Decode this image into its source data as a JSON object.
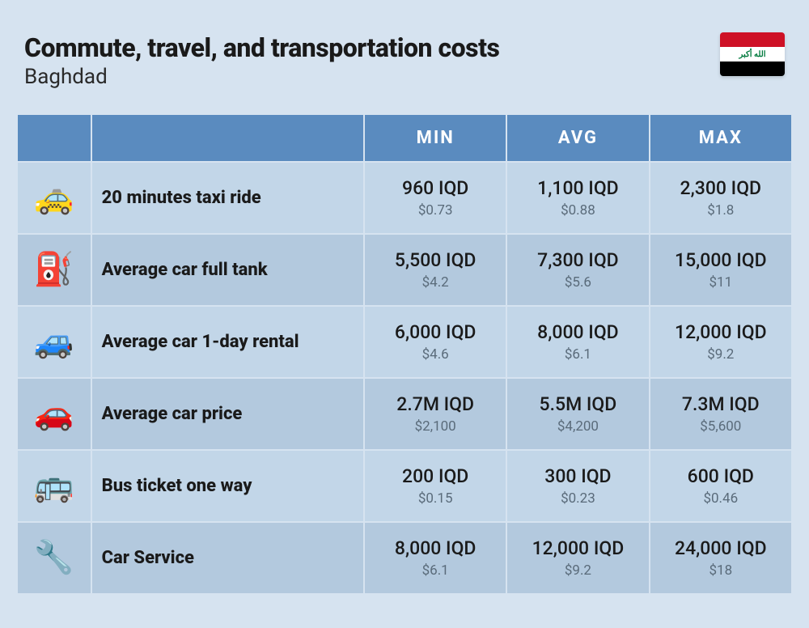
{
  "header": {
    "title": "Commute, travel, and transportation costs",
    "subtitle": "Baghdad",
    "flag_text": "الله أكبر",
    "flag_colors": {
      "top": "#ce1126",
      "middle": "#ffffff",
      "bottom": "#000000",
      "script": "#007a3d"
    }
  },
  "columns": {
    "min": "MIN",
    "avg": "AVG",
    "max": "MAX"
  },
  "rows": [
    {
      "icon": "🚕",
      "label": "20 minutes taxi ride",
      "min": {
        "primary": "960 IQD",
        "secondary": "$0.73"
      },
      "avg": {
        "primary": "1,100 IQD",
        "secondary": "$0.88"
      },
      "max": {
        "primary": "2,300 IQD",
        "secondary": "$1.8"
      }
    },
    {
      "icon": "⛽",
      "label": "Average car full tank",
      "min": {
        "primary": "5,500 IQD",
        "secondary": "$4.2"
      },
      "avg": {
        "primary": "7,300 IQD",
        "secondary": "$5.6"
      },
      "max": {
        "primary": "15,000 IQD",
        "secondary": "$11"
      }
    },
    {
      "icon": "🚙",
      "label": "Average car 1-day rental",
      "min": {
        "primary": "6,000 IQD",
        "secondary": "$4.6"
      },
      "avg": {
        "primary": "8,000 IQD",
        "secondary": "$6.1"
      },
      "max": {
        "primary": "12,000 IQD",
        "secondary": "$9.2"
      }
    },
    {
      "icon": "🚗",
      "label": "Average car price",
      "min": {
        "primary": "2.7M IQD",
        "secondary": "$2,100"
      },
      "avg": {
        "primary": "5.5M IQD",
        "secondary": "$4,200"
      },
      "max": {
        "primary": "7.3M IQD",
        "secondary": "$5,600"
      }
    },
    {
      "icon": "🚌",
      "label": "Bus ticket one way",
      "min": {
        "primary": "200 IQD",
        "secondary": "$0.15"
      },
      "avg": {
        "primary": "300 IQD",
        "secondary": "$0.23"
      },
      "max": {
        "primary": "600 IQD",
        "secondary": "$0.46"
      }
    },
    {
      "icon": "🔧",
      "label": "Car Service",
      "min": {
        "primary": "8,000 IQD",
        "secondary": "$6.1"
      },
      "avg": {
        "primary": "12,000 IQD",
        "secondary": "$9.2"
      },
      "max": {
        "primary": "24,000 IQD",
        "secondary": "$18"
      }
    }
  ],
  "style": {
    "page_bg": "#d6e3f0",
    "header_bg": "#5a8bbf",
    "row_odd_bg": "#c2d6e8",
    "row_even_bg": "#b3c9de",
    "primary_text": "#1a1a1a",
    "secondary_text": "#5a6b7a",
    "title_fontsize": 32,
    "subtitle_fontsize": 26,
    "col_header_fontsize": 22,
    "label_fontsize": 22,
    "primary_fontsize": 23,
    "secondary_fontsize": 17
  }
}
